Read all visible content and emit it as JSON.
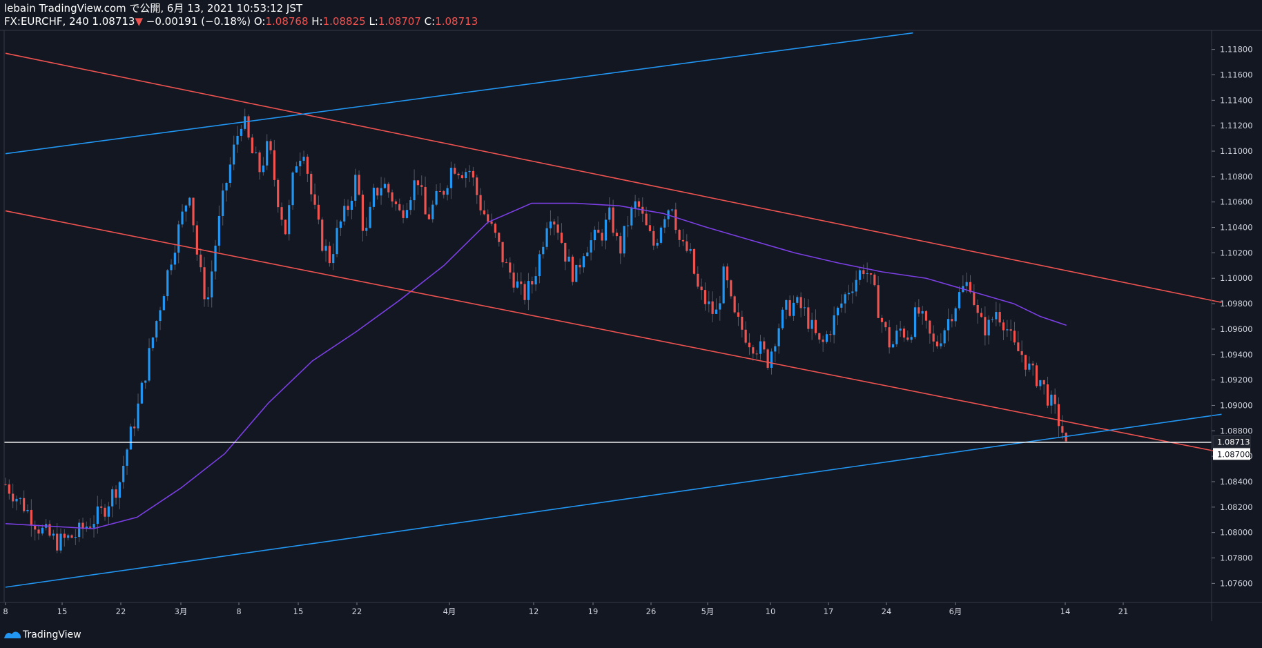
{
  "header": {
    "publish_line": "lebain TradingView.com で公開, 6月 13, 2021 10:53:12 JST",
    "symbol": "FX:EURCHF, 240",
    "last": "1.08713",
    "change": "−0.00191 (−0.18%)",
    "o_label": "O:",
    "o_value": "1.08768",
    "h_label": "H:",
    "h_value": "1.08825",
    "l_label": "L:",
    "l_value": "1.08707",
    "c_label": "C:",
    "c_value": "1.08713"
  },
  "footer": {
    "brand": "TradingView"
  },
  "colors": {
    "background": "#131722",
    "up": "#2196f3",
    "down": "#ef5350",
    "sma": "#7b3fe4",
    "channel_red": "#ef5350",
    "channel_blue": "#2196f3",
    "price_line": "#ffffff"
  },
  "chart_data": {
    "type": "candlestick",
    "symbol": "FX:EURCHF",
    "interval": "240",
    "ylim": [
      1.0745,
      1.1195
    ],
    "y_ticks": [
      "1.11800",
      "1.11600",
      "1.11400",
      "1.11200",
      "1.11000",
      "1.10800",
      "1.10600",
      "1.10400",
      "1.10200",
      "1.10000",
      "1.09800",
      "1.09600",
      "1.09400",
      "1.09200",
      "1.09000",
      "1.08800",
      "1.08600",
      "1.08400",
      "1.08200",
      "1.08000",
      "1.07800",
      "1.07600"
    ],
    "x_ticks": [
      "8",
      "15",
      "22",
      "3月",
      "8",
      "15",
      "22",
      "4月",
      "12",
      "19",
      "26",
      "5月",
      "10",
      "17",
      "24",
      "6月",
      "14",
      "21"
    ],
    "last_price_label": "1.08713",
    "horizontal_line_label": "1.08700",
    "horizontal_line_price": 1.0871,
    "price_path": [
      [
        0,
        1.0838
      ],
      [
        2,
        1.0822
      ],
      [
        4,
        1.0802
      ],
      [
        6,
        1.0792
      ],
      [
        8,
        1.0798
      ],
      [
        11,
        1.0816
      ],
      [
        13,
        1.084
      ],
      [
        14,
        1.087
      ],
      [
        15,
        1.0895
      ],
      [
        17,
        1.096
      ],
      [
        19,
        1.102
      ],
      [
        21,
        1.107
      ],
      [
        22,
        1.101
      ],
      [
        23,
        1.098
      ],
      [
        24,
        1.103
      ],
      [
        25,
        1.107
      ],
      [
        26,
        1.11
      ],
      [
        27,
        1.1128
      ],
      [
        28,
        1.11
      ],
      [
        29,
        1.1085
      ],
      [
        30,
        1.1105
      ],
      [
        31,
        1.1065
      ],
      [
        32,
        1.1035
      ],
      [
        33,
        1.109
      ],
      [
        34,
        1.1104
      ],
      [
        35,
        1.106
      ],
      [
        36,
        1.103
      ],
      [
        37,
        1.1015
      ],
      [
        38,
        1.104
      ],
      [
        39,
        1.1055
      ],
      [
        40,
        1.108
      ],
      [
        41,
        1.103
      ],
      [
        42,
        1.1065
      ],
      [
        43,
        1.1075
      ],
      [
        44,
        1.1065
      ],
      [
        45,
        1.105
      ],
      [
        46,
        1.1065
      ],
      [
        47,
        1.108
      ],
      [
        48,
        1.1045
      ],
      [
        49,
        1.106
      ],
      [
        50,
        1.107
      ],
      [
        51,
        1.109
      ],
      [
        52,
        1.1085
      ],
      [
        53,
        1.1085
      ],
      [
        54,
        1.106
      ],
      [
        55,
        1.1045
      ],
      [
        56,
        1.103
      ],
      [
        57,
        1.101
      ],
      [
        58,
        1.1
      ],
      [
        59,
        1.0985
      ],
      [
        60,
        1.0995
      ],
      [
        61,
        1.102
      ],
      [
        62,
        1.1055
      ],
      [
        63,
        1.104
      ],
      [
        64,
        1.1015
      ],
      [
        65,
        1.1
      ],
      [
        66,
        1.1025
      ],
      [
        67,
        1.103
      ],
      [
        68,
        1.1035
      ],
      [
        69,
        1.105
      ],
      [
        70,
        1.102
      ],
      [
        71,
        1.1045
      ],
      [
        72,
        1.106
      ],
      [
        73,
        1.104
      ],
      [
        74,
        1.1025
      ],
      [
        75,
        1.105
      ],
      [
        76,
        1.106
      ],
      [
        77,
        1.1025
      ],
      [
        78,
        1.102
      ],
      [
        79,
        1.099
      ],
      [
        80,
        1.098
      ],
      [
        81,
        1.097
      ],
      [
        82,
        1.1005
      ],
      [
        83,
        1.097
      ],
      [
        84,
        1.096
      ],
      [
        85,
        1.095
      ],
      [
        86,
        1.0945
      ],
      [
        87,
        1.0935
      ],
      [
        88,
        1.096
      ],
      [
        89,
        1.0975
      ],
      [
        90,
        1.098
      ],
      [
        91,
        1.0975
      ],
      [
        92,
        1.096
      ],
      [
        93,
        1.0945
      ],
      [
        94,
        1.096
      ],
      [
        95,
        1.0975
      ],
      [
        96,
        1.099
      ],
      [
        97,
        1.1
      ],
      [
        98,
        1.101
      ],
      [
        99,
        1.099
      ],
      [
        100,
        1.0965
      ],
      [
        101,
        1.0945
      ],
      [
        102,
        1.096
      ],
      [
        103,
        1.0955
      ],
      [
        104,
        1.0975
      ],
      [
        105,
        1.096
      ],
      [
        106,
        1.0945
      ],
      [
        107,
        1.096
      ],
      [
        108,
        1.0975
      ],
      [
        109,
        1.099
      ],
      [
        110,
        1.0998
      ],
      [
        111,
        1.0965
      ],
      [
        112,
        1.096
      ],
      [
        113,
        1.0975
      ],
      [
        114,
        1.0965
      ],
      [
        115,
        1.0945
      ],
      [
        116,
        1.094
      ],
      [
        117,
        1.0925
      ],
      [
        118,
        1.092
      ],
      [
        119,
        1.0905
      ],
      [
        120,
        1.089
      ],
      [
        121,
        1.0871
      ]
    ],
    "series": [
      {
        "name": "SMA",
        "color": "#7b3fe4",
        "values": [
          [
            0,
            1.0807
          ],
          [
            10,
            1.0803
          ],
          [
            15,
            1.0812
          ],
          [
            20,
            1.0835
          ],
          [
            25,
            1.0862
          ],
          [
            30,
            1.0902
          ],
          [
            35,
            1.0935
          ],
          [
            40,
            1.0958
          ],
          [
            45,
            1.0983
          ],
          [
            50,
            1.101
          ],
          [
            55,
            1.1044
          ],
          [
            60,
            1.1059
          ],
          [
            65,
            1.1059
          ],
          [
            70,
            1.1057
          ],
          [
            75,
            1.1051
          ],
          [
            80,
            1.104
          ],
          [
            85,
            1.103
          ],
          [
            90,
            1.102
          ],
          [
            95,
            1.1012
          ],
          [
            100,
            1.1005
          ],
          [
            105,
            1.1
          ],
          [
            110,
            1.099
          ],
          [
            115,
            1.098
          ],
          [
            118,
            1.097
          ],
          [
            121,
            1.0963
          ]
        ]
      }
    ],
    "trendlines": [
      {
        "color": "#ef5350",
        "from": [
          0,
          1.1177
        ],
        "to": [
          138.7,
          1.0981
        ]
      },
      {
        "color": "#ef5350",
        "from": [
          0,
          1.1053
        ],
        "to": [
          138.7,
          1.0863
        ]
      },
      {
        "color": "#2196f3",
        "from": [
          0,
          1.1098
        ],
        "to": [
          103.5,
          1.1193
        ]
      },
      {
        "color": "#2196f3",
        "from": [
          0,
          1.0757
        ],
        "to": [
          138.7,
          1.0893
        ]
      }
    ]
  }
}
